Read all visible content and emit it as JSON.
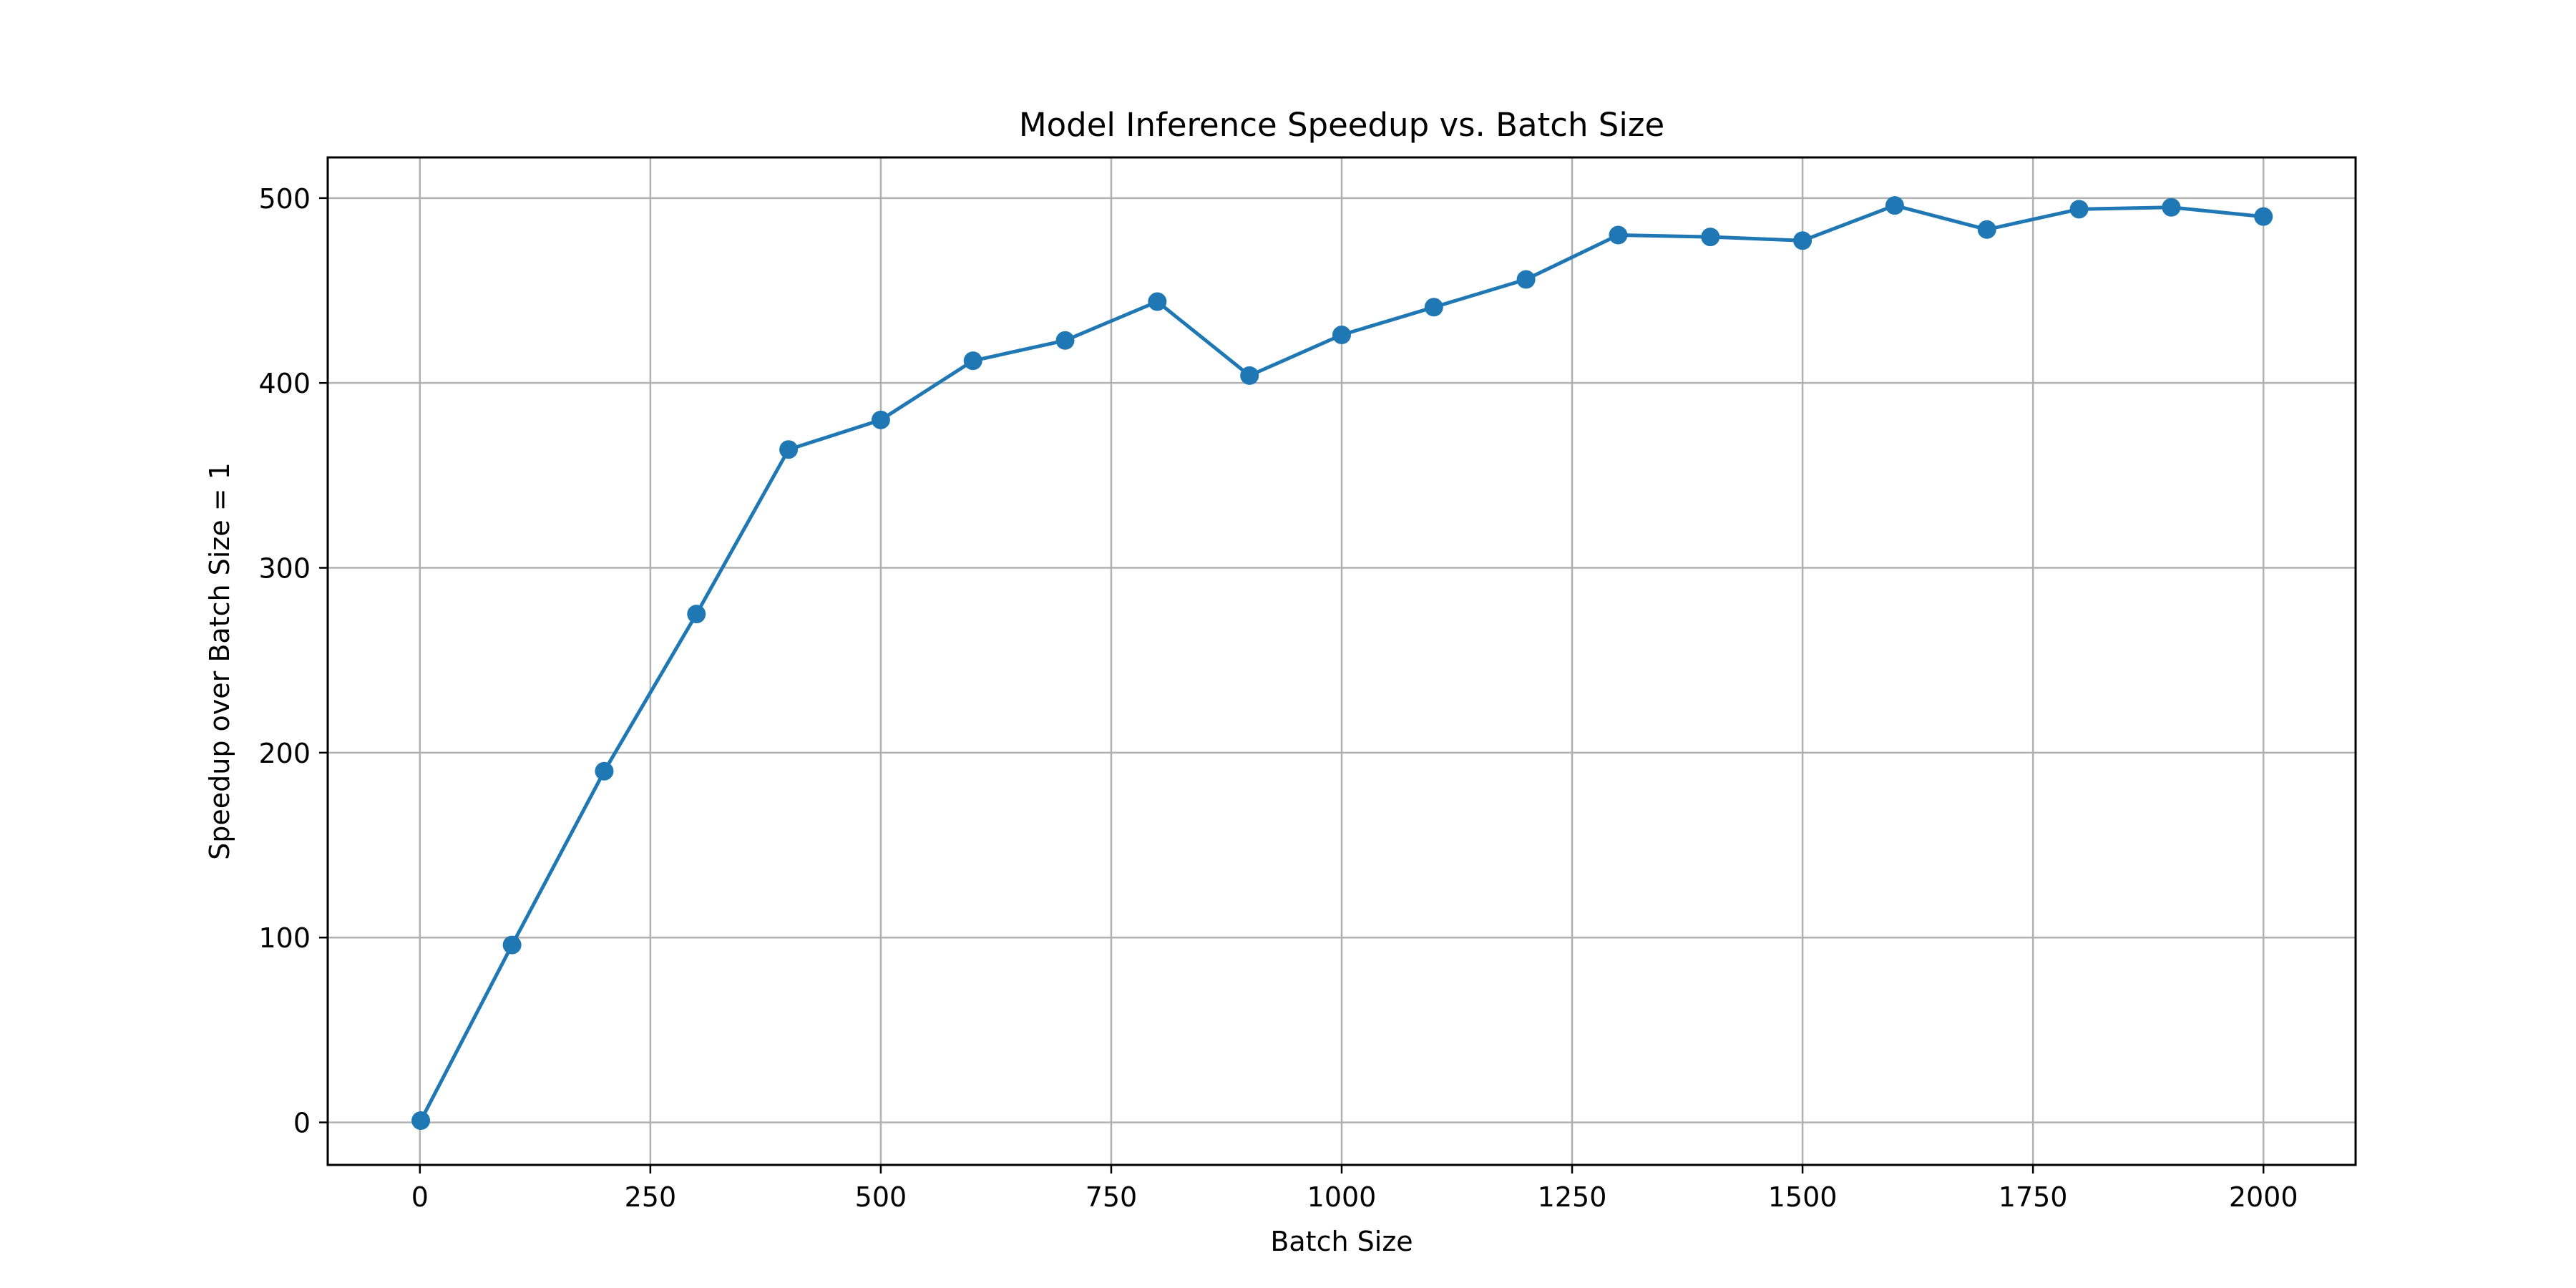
{
  "chart_data": {
    "type": "line",
    "title": "Model Inference Speedup vs. Batch Size",
    "xlabel": "Batch Size",
    "ylabel": "Speedup over Batch Size = 1",
    "xlim": [
      -100,
      2100
    ],
    "ylim": [
      -23,
      522
    ],
    "x_ticks": [
      0,
      250,
      500,
      750,
      1000,
      1250,
      1500,
      1750,
      2000
    ],
    "x_tick_labels": [
      "0",
      "250",
      "500",
      "750",
      "1000",
      "1250",
      "1500",
      "1750",
      "2000"
    ],
    "y_ticks": [
      0,
      100,
      200,
      300,
      400,
      500
    ],
    "y_tick_labels": [
      "0",
      "100",
      "200",
      "300",
      "400",
      "500"
    ],
    "grid": true,
    "legend": "none",
    "series": [
      {
        "color": "#1f77b4",
        "marker": "circle",
        "x": [
          1,
          100,
          200,
          300,
          400,
          500,
          600,
          700,
          800,
          900,
          1000,
          1100,
          1200,
          1300,
          1400,
          1500,
          1600,
          1700,
          1800,
          1900,
          2000
        ],
        "y": [
          1,
          96,
          190,
          275,
          364,
          380,
          412,
          423,
          444,
          404,
          426,
          441,
          456,
          480,
          479,
          477,
          496,
          483,
          494,
          495,
          490
        ]
      }
    ]
  }
}
